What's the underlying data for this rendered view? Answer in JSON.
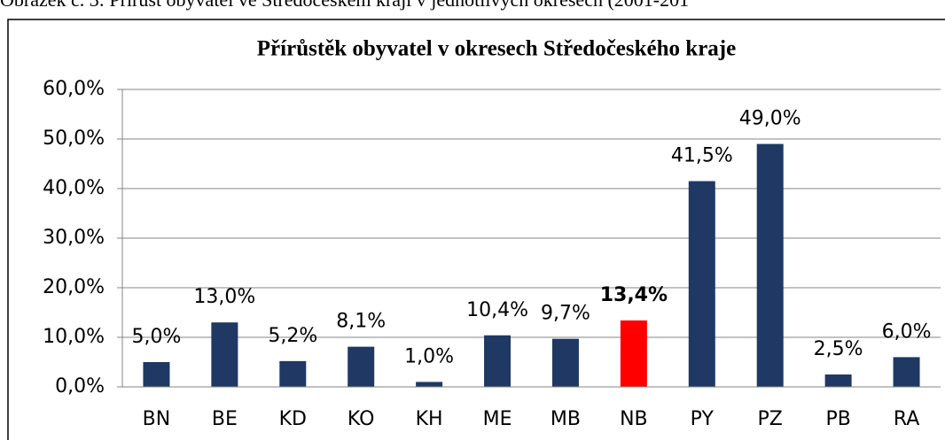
{
  "caption": "Obrázek č. 3: Přírůst obyvatel ve Středočeském kraji v jednotlivých okresech (2001-201",
  "chart_data": {
    "type": "bar",
    "title": "Přírůstěk obyvatel v okresech Středočeského kraje",
    "categories": [
      "BN",
      "BE",
      "KD",
      "KO",
      "KH",
      "ME",
      "MB",
      "NB",
      "PY",
      "PZ",
      "PB",
      "RA"
    ],
    "values": [
      5.0,
      13.0,
      5.2,
      8.1,
      1.0,
      10.4,
      9.7,
      13.4,
      41.5,
      49.0,
      2.5,
      6.0
    ],
    "value_labels": [
      "5,0%",
      "13,0%",
      "5,2%",
      "8,1%",
      "1,0%",
      "10,4%",
      "9,7%",
      "13,4%",
      "41,5%",
      "49,0%",
      "2,5%",
      "6,0%"
    ],
    "colors": [
      "#1f3864",
      "#1f3864",
      "#1f3864",
      "#1f3864",
      "#1f3864",
      "#1f3864",
      "#1f3864",
      "#ff0000",
      "#1f3864",
      "#1f3864",
      "#1f3864",
      "#1f3864"
    ],
    "highlight": "NB",
    "ylim": [
      0,
      60
    ],
    "yticks": [
      {
        "value": 0,
        "label": "0,0%"
      },
      {
        "value": 10,
        "label": "10,0%"
      },
      {
        "value": 20,
        "label": "20,0%"
      },
      {
        "value": 30,
        "label": "30,0%"
      },
      {
        "value": 40,
        "label": "40,0%"
      },
      {
        "value": 50,
        "label": "50,0%"
      },
      {
        "value": 60,
        "label": "60,0%"
      }
    ],
    "grid": true
  }
}
